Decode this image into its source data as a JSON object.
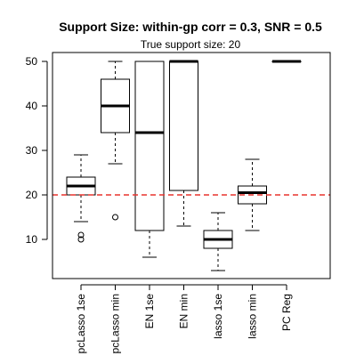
{
  "chart_data": {
    "type": "boxplot",
    "title": "Support Size: within-gp corr = 0.3, SNR = 0.5",
    "subtitle": "True support size: 20",
    "xlabel": "",
    "ylabel": "",
    "ylim": [
      1,
      52
    ],
    "yticks": [
      10,
      20,
      30,
      40,
      50
    ],
    "grid": false,
    "reference_line": {
      "y": 20,
      "color": "#e8332f",
      "style": "dashed"
    },
    "categories": [
      "pcLasso 1se",
      "pcLasso min",
      "EN 1se",
      "EN min",
      "lasso 1se",
      "lasso min",
      "PC Reg"
    ],
    "boxes": [
      {
        "label": "pcLasso 1se",
        "whisker_low": 14,
        "q1": 20,
        "median": 22,
        "q3": 24,
        "whisker_high": 29,
        "outliers": [
          11,
          10
        ]
      },
      {
        "label": "pcLasso min",
        "whisker_low": 27,
        "q1": 34,
        "median": 40,
        "q3": 46,
        "whisker_high": 50,
        "outliers": [
          15
        ]
      },
      {
        "label": "EN 1se",
        "whisker_low": 6,
        "q1": 12,
        "median": 34,
        "q3": 50,
        "whisker_high": 50,
        "outliers": []
      },
      {
        "label": "EN min",
        "whisker_low": 13,
        "q1": 21,
        "median": 50,
        "q3": 50,
        "whisker_high": 50,
        "outliers": []
      },
      {
        "label": "lasso 1se",
        "whisker_low": 3,
        "q1": 8,
        "median": 10,
        "q3": 12,
        "whisker_high": 16,
        "outliers": []
      },
      {
        "label": "lasso min",
        "whisker_low": 12,
        "q1": 18,
        "median": 20.5,
        "q3": 22,
        "whisker_high": 28,
        "outliers": []
      },
      {
        "label": "PC Reg",
        "whisker_low": 50,
        "q1": 50,
        "median": 50,
        "q3": 50,
        "whisker_high": 50,
        "outliers": []
      }
    ]
  }
}
